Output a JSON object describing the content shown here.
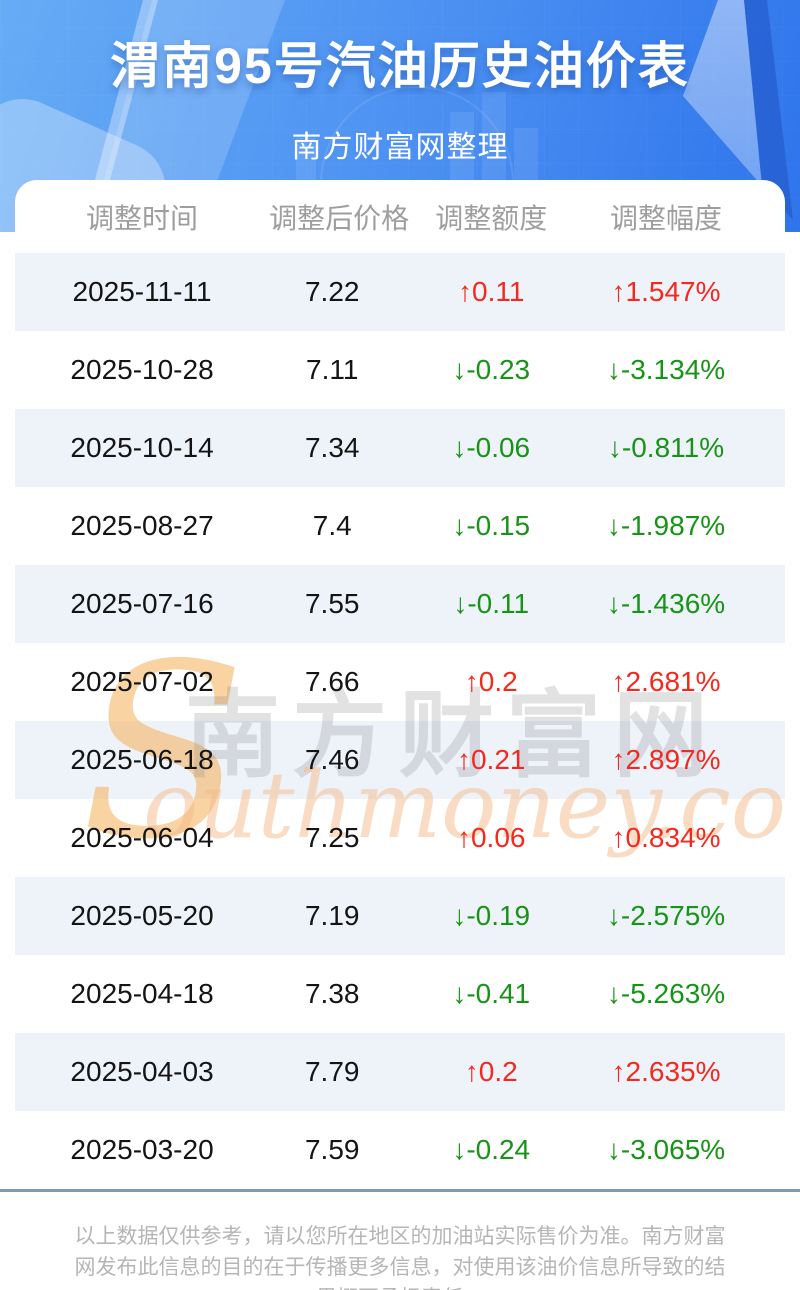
{
  "hero": {
    "title": "渭南95号汽油历史油价表",
    "subtitle": "南方财富网整理"
  },
  "table": {
    "columns": [
      "调整时间",
      "调整后价格",
      "调整额度",
      "调整幅度"
    ],
    "rows": [
      {
        "date": "2025-11-11",
        "price": "7.22",
        "change": "↑0.11",
        "percent": "↑1.547%",
        "direction": "up"
      },
      {
        "date": "2025-10-28",
        "price": "7.11",
        "change": "↓-0.23",
        "percent": "↓-3.134%",
        "direction": "down"
      },
      {
        "date": "2025-10-14",
        "price": "7.34",
        "change": "↓-0.06",
        "percent": "↓-0.811%",
        "direction": "down"
      },
      {
        "date": "2025-08-27",
        "price": "7.4",
        "change": "↓-0.15",
        "percent": "↓-1.987%",
        "direction": "down"
      },
      {
        "date": "2025-07-16",
        "price": "7.55",
        "change": "↓-0.11",
        "percent": "↓-1.436%",
        "direction": "down"
      },
      {
        "date": "2025-07-02",
        "price": "7.66",
        "change": "↑0.2",
        "percent": "↑2.681%",
        "direction": "up"
      },
      {
        "date": "2025-06-18",
        "price": "7.46",
        "change": "↑0.21",
        "percent": "↑2.897%",
        "direction": "up"
      },
      {
        "date": "2025-06-04",
        "price": "7.25",
        "change": "↑0.06",
        "percent": "↑0.834%",
        "direction": "up"
      },
      {
        "date": "2025-05-20",
        "price": "7.19",
        "change": "↓-0.19",
        "percent": "↓-2.575%",
        "direction": "down"
      },
      {
        "date": "2025-04-18",
        "price": "7.38",
        "change": "↓-0.41",
        "percent": "↓-5.263%",
        "direction": "down"
      },
      {
        "date": "2025-04-03",
        "price": "7.79",
        "change": "↑0.2",
        "percent": "↑2.635%",
        "direction": "up"
      },
      {
        "date": "2025-03-20",
        "price": "7.59",
        "change": "↓-0.24",
        "percent": "↓-3.065%",
        "direction": "down"
      }
    ]
  },
  "watermark": {
    "s": "S",
    "cn": "南方财富网",
    "en": "outhmoney.com"
  },
  "footer": {
    "disclaimer": "以上数据仅供参考，请以您所在地区的加油站实际售价为准。南方财富网发布此信息的目的在于传播更多信息，对使用该油价信息所导致的结果概不承担责任。"
  },
  "colors": {
    "up_red": "#f5281e",
    "down_green": "#179417",
    "row_stripe": "#eef3fa",
    "hero_blue_left": "#66acf5",
    "hero_blue_right": "#2f74ec",
    "divider": "#7d9bb8",
    "header_text": "#9e9e9e"
  }
}
